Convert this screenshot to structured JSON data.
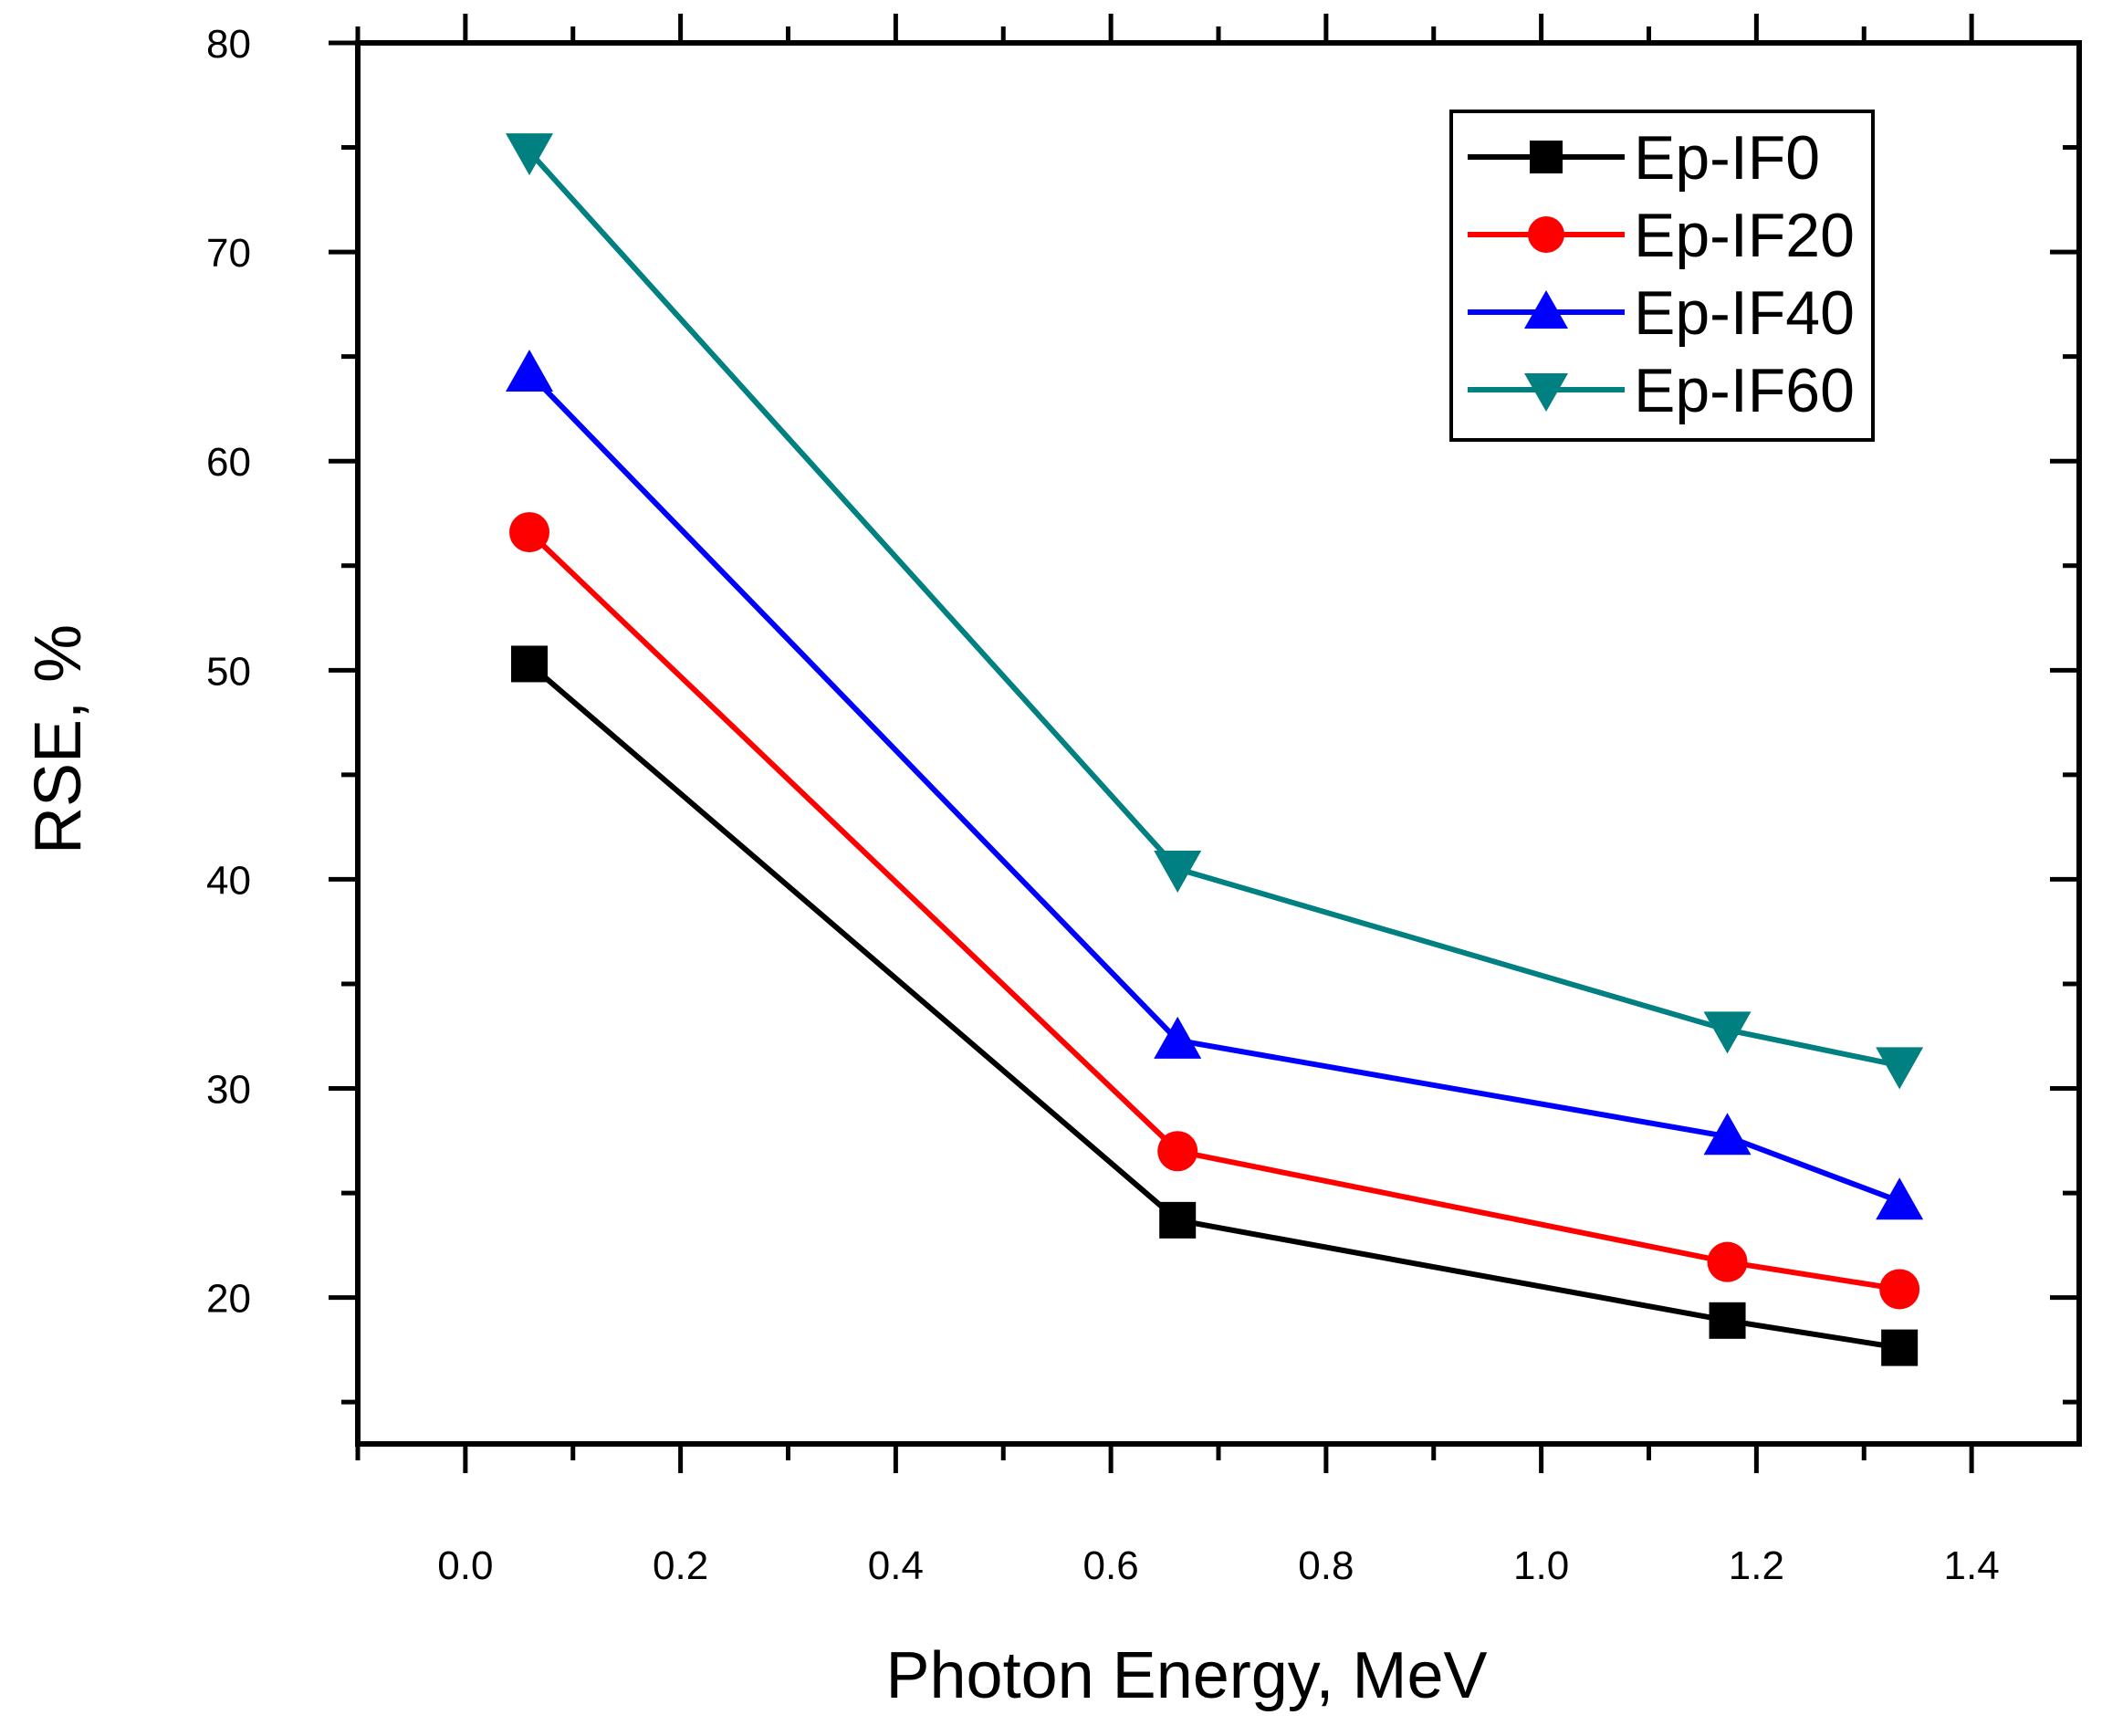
{
  "chart_data": {
    "type": "line",
    "title": "",
    "xlabel": "Photon Energy, MeV",
    "ylabel": "RSE, %",
    "xlim": [
      -0.1,
      1.5
    ],
    "ylim": [
      13,
      80
    ],
    "x_ticks": [
      0.0,
      0.2,
      0.4,
      0.6,
      0.8,
      1.0,
      1.2,
      1.4
    ],
    "x_tick_labels": [
      "0.0",
      "0.2",
      "0.4",
      "0.6",
      "0.8",
      "1.0",
      "1.2",
      "1.4"
    ],
    "y_ticks": [
      20,
      30,
      40,
      50,
      60,
      70,
      80
    ],
    "y_tick_labels": [
      "20",
      "30",
      "40",
      "50",
      "60",
      "70",
      "80"
    ],
    "grid": false,
    "legend_position": "top-right",
    "x": [
      0.0595,
      0.662,
      1.173,
      1.333
    ],
    "series": [
      {
        "name": "Ep-IF0",
        "color": "#000000",
        "marker": "square",
        "values": [
          50.3,
          23.7,
          18.9,
          17.6
        ]
      },
      {
        "name": "Ep-IF20",
        "color": "#ff0000",
        "marker": "circle",
        "values": [
          56.6,
          27.0,
          21.7,
          20.4
        ]
      },
      {
        "name": "Ep-IF40",
        "color": "#0000ff",
        "marker": "triangle-up",
        "values": [
          64.2,
          32.3,
          27.7,
          24.6
        ]
      },
      {
        "name": "Ep-IF60",
        "color": "#008080",
        "marker": "triangle-down",
        "values": [
          74.8,
          40.5,
          32.8,
          31.1
        ]
      }
    ]
  }
}
